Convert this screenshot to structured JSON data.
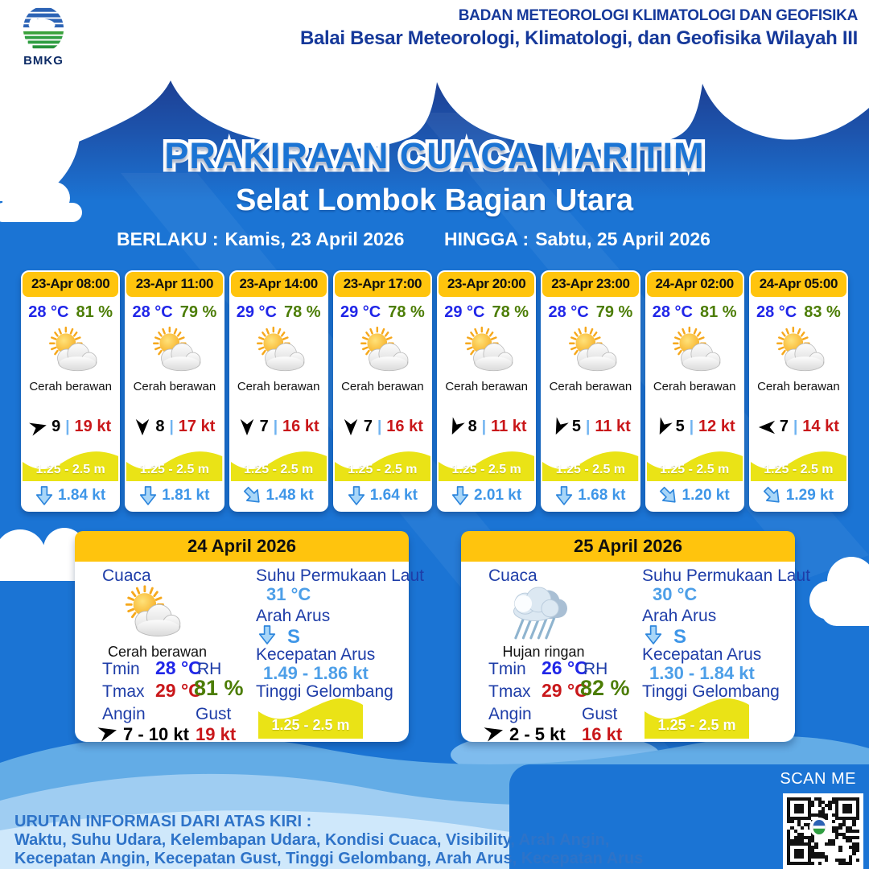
{
  "header": {
    "logo_text": "BMKG",
    "agency_line1": "BADAN METEOROLOGI KLIMATOLOGI DAN GEOFISIKA",
    "agency_line2": "Balai Besar Meteorologi, Klimatologi, dan Geofisika Wilayah III"
  },
  "title": "PRAKIRAAN CUACA MARITIM",
  "subtitle": "Selat Lombok Bagian Utara",
  "validity": {
    "berlaku_label": "BERLAKU :",
    "berlaku_value": "Kamis, 23 April 2026",
    "hingga_label": "HINGGA :",
    "hingga_value": "Sabtu, 25 April 2026"
  },
  "ui": {
    "separator": "|"
  },
  "hourly": [
    {
      "time": "23-Apr 08:00",
      "temp": "28 °C",
      "rh": "81 %",
      "icon": "sun-cloud",
      "cond": "Cerah berawan",
      "visibility": "9",
      "wind_speed": "19 kt",
      "wind_deg": -15,
      "wave": "1.25 - 2.5 m",
      "current": "1.84 kt",
      "cur_deg": 0
    },
    {
      "time": "23-Apr 11:00",
      "temp": "28 °C",
      "rh": "79 %",
      "icon": "sun-cloud",
      "cond": "Cerah berawan",
      "visibility": "8",
      "wind_speed": "17 kt",
      "wind_deg": 90,
      "wave": "1.25 - 2.5 m",
      "current": "1.81 kt",
      "cur_deg": 0
    },
    {
      "time": "23-Apr 14:00",
      "temp": "29 °C",
      "rh": "78 %",
      "icon": "sun-cloud",
      "cond": "Cerah berawan",
      "visibility": "7",
      "wind_speed": "16 kt",
      "wind_deg": 90,
      "wave": "1.25 - 2.5 m",
      "current": "1.48 kt",
      "cur_deg": -45
    },
    {
      "time": "23-Apr 17:00",
      "temp": "29 °C",
      "rh": "78 %",
      "icon": "sun-cloud",
      "cond": "Cerah berawan",
      "visibility": "7",
      "wind_speed": "16 kt",
      "wind_deg": 90,
      "wave": "1.25 - 2.5 m",
      "current": "1.64 kt",
      "cur_deg": 0
    },
    {
      "time": "23-Apr 20:00",
      "temp": "29 °C",
      "rh": "78 %",
      "icon": "sun-cloud",
      "cond": "Cerah berawan",
      "visibility": "8",
      "wind_speed": "11 kt",
      "wind_deg": 115,
      "wave": "1.25 - 2.5 m",
      "current": "2.01 kt",
      "cur_deg": 0
    },
    {
      "time": "23-Apr 23:00",
      "temp": "28 °C",
      "rh": "79 %",
      "icon": "sun-cloud",
      "cond": "Cerah berawan",
      "visibility": "5",
      "wind_speed": "11 kt",
      "wind_deg": 115,
      "wave": "1.25 - 2.5 m",
      "current": "1.68 kt",
      "cur_deg": 0
    },
    {
      "time": "24-Apr 02:00",
      "temp": "28 °C",
      "rh": "81 %",
      "icon": "sun-cloud",
      "cond": "Cerah berawan",
      "visibility": "5",
      "wind_speed": "12 kt",
      "wind_deg": 115,
      "wave": "1.25 - 2.5 m",
      "current": "1.20 kt",
      "cur_deg": -45
    },
    {
      "time": "24-Apr 05:00",
      "temp": "28 °C",
      "rh": "83 %",
      "icon": "sun-cloud",
      "cond": "Cerah berawan",
      "visibility": "7",
      "wind_speed": "14 kt",
      "wind_deg": 180,
      "wave": "1.25 - 2.5 m",
      "current": "1.29 kt",
      "cur_deg": -45
    }
  ],
  "daily_labels": {
    "cuaca": "Cuaca",
    "tmin": "Tmin",
    "tmax": "Tmax",
    "angin": "Angin",
    "rh": "RH",
    "gust": "Gust",
    "sst": "Suhu Permukaan Laut",
    "arah_arus": "Arah Arus",
    "kecepatan_arus": "Kecepatan Arus",
    "tinggi_gelombang": "Tinggi Gelombang"
  },
  "daily": [
    {
      "date": "24 April 2026",
      "icon": "sun-cloud",
      "cond": "Cerah berawan",
      "tmin": "28 °C",
      "tmax": "29 °C",
      "wind": "7  - 10 kt",
      "wind_deg": -15,
      "rh": "81 %",
      "gust": "19 kt",
      "sst": "31 °C",
      "arah": "S",
      "arah_deg": 0,
      "kecepatan": "1.49  - 1.86 kt",
      "wave": "1.25 - 2.5 m"
    },
    {
      "date": "25 April 2026",
      "icon": "rain-cloud",
      "cond": "Hujan ringan",
      "tmin": "26 °C",
      "tmax": "29 °C",
      "wind": "2  - 5 kt",
      "wind_deg": -15,
      "rh": "82 %",
      "gust": "16 kt",
      "sst": "30 °C",
      "arah": "S",
      "arah_deg": 0,
      "kecepatan": "1.30 - 1.84 kt",
      "wave": "1.25 - 2.5 m"
    }
  ],
  "footer": {
    "legend_title": "URUTAN INFORMASI DARI ATAS KIRI :",
    "legend_line1": "Waktu, Suhu Udara, Kelembapan Udara, Kondisi Cuaca, Visibility, Arah Angin,",
    "legend_line2": "Kecepatan Angin, Kecepatan Gust, Tinggi Gelombang, Arah Arus, Kecepatan Arus",
    "scan_label": "SCAN ME"
  },
  "colors": {
    "bg_blue": "#1B74D4",
    "deep_blue": "#1D3F93",
    "accent_yellow": "#FFC40D",
    "wave_yellow": "#EAE316",
    "temp_blue": "#2026E8",
    "humidity_green": "#4C7D05",
    "speed_red": "#C9171A",
    "current_blue": "#3E96E8",
    "label_navy": "#1E3DA8",
    "value_lightblue": "#4D9FE8",
    "footer_text_blue": "#2E73C8"
  }
}
